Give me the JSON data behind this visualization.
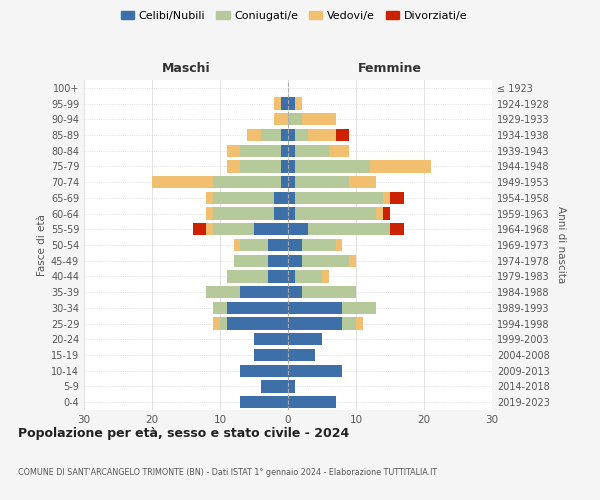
{
  "age_groups": [
    "0-4",
    "5-9",
    "10-14",
    "15-19",
    "20-24",
    "25-29",
    "30-34",
    "35-39",
    "40-44",
    "45-49",
    "50-54",
    "55-59",
    "60-64",
    "65-69",
    "70-74",
    "75-79",
    "80-84",
    "85-89",
    "90-94",
    "95-99",
    "100+"
  ],
  "birth_years": [
    "2019-2023",
    "2014-2018",
    "2009-2013",
    "2004-2008",
    "1999-2003",
    "1994-1998",
    "1989-1993",
    "1984-1988",
    "1979-1983",
    "1974-1978",
    "1969-1973",
    "1964-1968",
    "1959-1963",
    "1954-1958",
    "1949-1953",
    "1944-1948",
    "1939-1943",
    "1934-1938",
    "1929-1933",
    "1924-1928",
    "≤ 1923"
  ],
  "male": {
    "celibi": [
      7,
      4,
      7,
      5,
      5,
      9,
      9,
      7,
      3,
      3,
      3,
      5,
      2,
      2,
      1,
      1,
      1,
      1,
      0,
      1,
      0
    ],
    "coniugati": [
      0,
      0,
      0,
      0,
      0,
      1,
      2,
      5,
      6,
      5,
      4,
      6,
      9,
      9,
      10,
      6,
      6,
      3,
      0,
      0,
      0
    ],
    "vedovi": [
      0,
      0,
      0,
      0,
      0,
      1,
      0,
      0,
      0,
      0,
      1,
      1,
      1,
      1,
      9,
      2,
      2,
      2,
      2,
      1,
      0
    ],
    "divorziati": [
      0,
      0,
      0,
      0,
      0,
      0,
      0,
      0,
      0,
      0,
      0,
      2,
      0,
      0,
      0,
      0,
      0,
      0,
      0,
      0,
      0
    ]
  },
  "female": {
    "nubili": [
      7,
      1,
      8,
      4,
      5,
      8,
      8,
      2,
      1,
      2,
      2,
      3,
      1,
      1,
      1,
      1,
      1,
      1,
      0,
      1,
      0
    ],
    "coniugate": [
      0,
      0,
      0,
      0,
      0,
      2,
      5,
      8,
      4,
      7,
      5,
      12,
      12,
      13,
      8,
      11,
      5,
      2,
      2,
      0,
      0
    ],
    "vedove": [
      0,
      0,
      0,
      0,
      0,
      1,
      0,
      0,
      1,
      1,
      1,
      0,
      1,
      1,
      4,
      9,
      3,
      4,
      5,
      1,
      0
    ],
    "divorziate": [
      0,
      0,
      0,
      0,
      0,
      0,
      0,
      0,
      0,
      0,
      0,
      2,
      1,
      2,
      0,
      0,
      0,
      2,
      0,
      0,
      0
    ]
  },
  "colors": {
    "celibi": "#3d6fa8",
    "coniugati": "#b5c99a",
    "vedovi": "#f0c070",
    "divorziati": "#cc2200"
  },
  "xlim": 30,
  "title1": "Popolazione per età, sesso e stato civile - 2024",
  "title2": "COMUNE DI SANT'ARCANGELO TRIMONTE (BN) - Dati ISTAT 1° gennaio 2024 - Elaborazione TUTTITALIA.IT",
  "legend_labels": [
    "Celibi/Nubili",
    "Coniugati/e",
    "Vedovi/e",
    "Divorziati/e"
  ],
  "xlabel_left": "Maschi",
  "xlabel_right": "Femmine",
  "ylabel_left": "Fasce di età",
  "ylabel_right": "Anni di nascita",
  "bg_color": "#f5f5f5",
  "plot_bg": "#ffffff"
}
